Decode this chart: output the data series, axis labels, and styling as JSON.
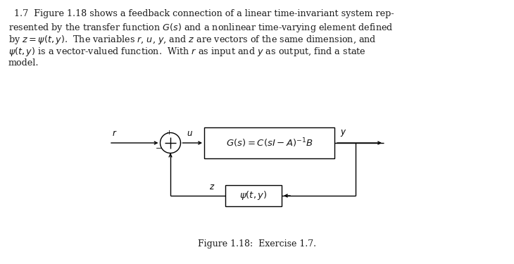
{
  "background_color": "#ffffff",
  "fig_width": 7.3,
  "fig_height": 3.75,
  "dpi": 100,
  "figure_caption": "Figure 1.18:  Exercise 1.7.",
  "Gbox_label": "$G(s) = C(sI - A)^{-1}B$",
  "psi_box_label": "$\\psi(t, y)$",
  "line_color": "#000000",
  "text_color": "#1a1a1a",
  "font_size_body": 9.2,
  "font_size_labels": 8.5,
  "font_size_caption": 9.0,
  "paragraph_lines": [
    "  1.7  Figure 1.18 shows a feedback connection of a linear time-invariant system rep-",
    "resented by the transfer function $G(s)$ and a nonlinear time-varying element defined",
    "by $z = \\psi(t, y)$.  The variables $r$, $u$, $y$, and $z$ are vectors of the same dimension, and",
    "$\\psi(t, y)$ is a vector-valued function.  With $r$ as input and $y$ as output, find a state",
    "model."
  ]
}
